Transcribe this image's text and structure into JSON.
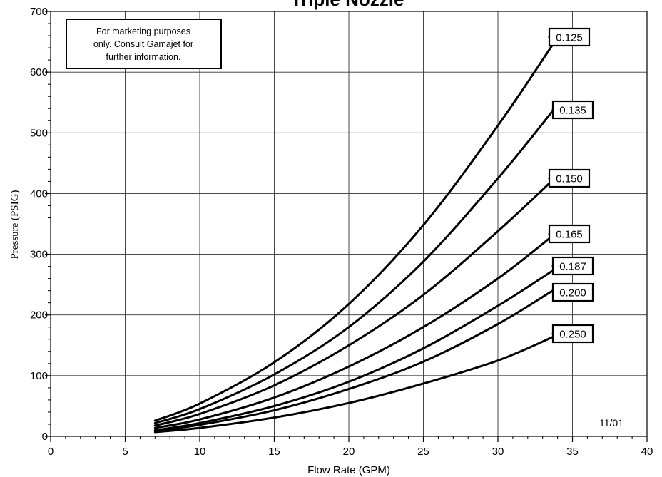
{
  "chart_data": {
    "type": "line",
    "title": "Triple Nozzle",
    "xlabel": "Flow Rate (GPM)",
    "ylabel": "Pressure (PSIG)",
    "xlim": [
      0,
      40
    ],
    "ylim": [
      0,
      700
    ],
    "x_ticks": [
      0,
      5,
      10,
      15,
      20,
      25,
      30,
      35,
      40
    ],
    "y_ticks": [
      0,
      100,
      200,
      300,
      400,
      500,
      600,
      700
    ],
    "grid": true,
    "note": [
      "For marketing purposes",
      "only. Consult Gamajet for",
      "further information."
    ],
    "date_code": "11/01",
    "series": [
      {
        "name": "0.125",
        "x": [
          7,
          10,
          15,
          20,
          25,
          30,
          33.8
        ],
        "y": [
          26,
          54,
          122,
          218,
          348,
          512,
          650
        ]
      },
      {
        "name": "0.135",
        "x": [
          7,
          10,
          15,
          20,
          25,
          30,
          33.8
        ],
        "y": [
          22,
          45,
          102,
          180,
          288,
          425,
          540
        ]
      },
      {
        "name": "0.150",
        "x": [
          7,
          10,
          15,
          20,
          25,
          30,
          33.8
        ],
        "y": [
          18,
          37,
          84,
          150,
          233,
          338,
          425
        ]
      },
      {
        "name": "0.165",
        "x": [
          7,
          10,
          15,
          20,
          25,
          30,
          33.8
        ],
        "y": [
          14,
          28,
          64,
          115,
          180,
          260,
          333
        ]
      },
      {
        "name": "0.187",
        "x": [
          7,
          10,
          15,
          20,
          25,
          30,
          33.8
        ],
        "y": [
          10,
          22,
          50,
          90,
          145,
          215,
          275
        ]
      },
      {
        "name": "0.200",
        "x": [
          7,
          10,
          15,
          20,
          25,
          30,
          33.8
        ],
        "y": [
          9,
          19,
          43,
          78,
          123,
          185,
          242
        ]
      },
      {
        "name": "0.250",
        "x": [
          7,
          10,
          15,
          20,
          25,
          30,
          33.8
        ],
        "y": [
          7,
          14,
          31,
          55,
          87,
          125,
          165
        ]
      }
    ]
  }
}
